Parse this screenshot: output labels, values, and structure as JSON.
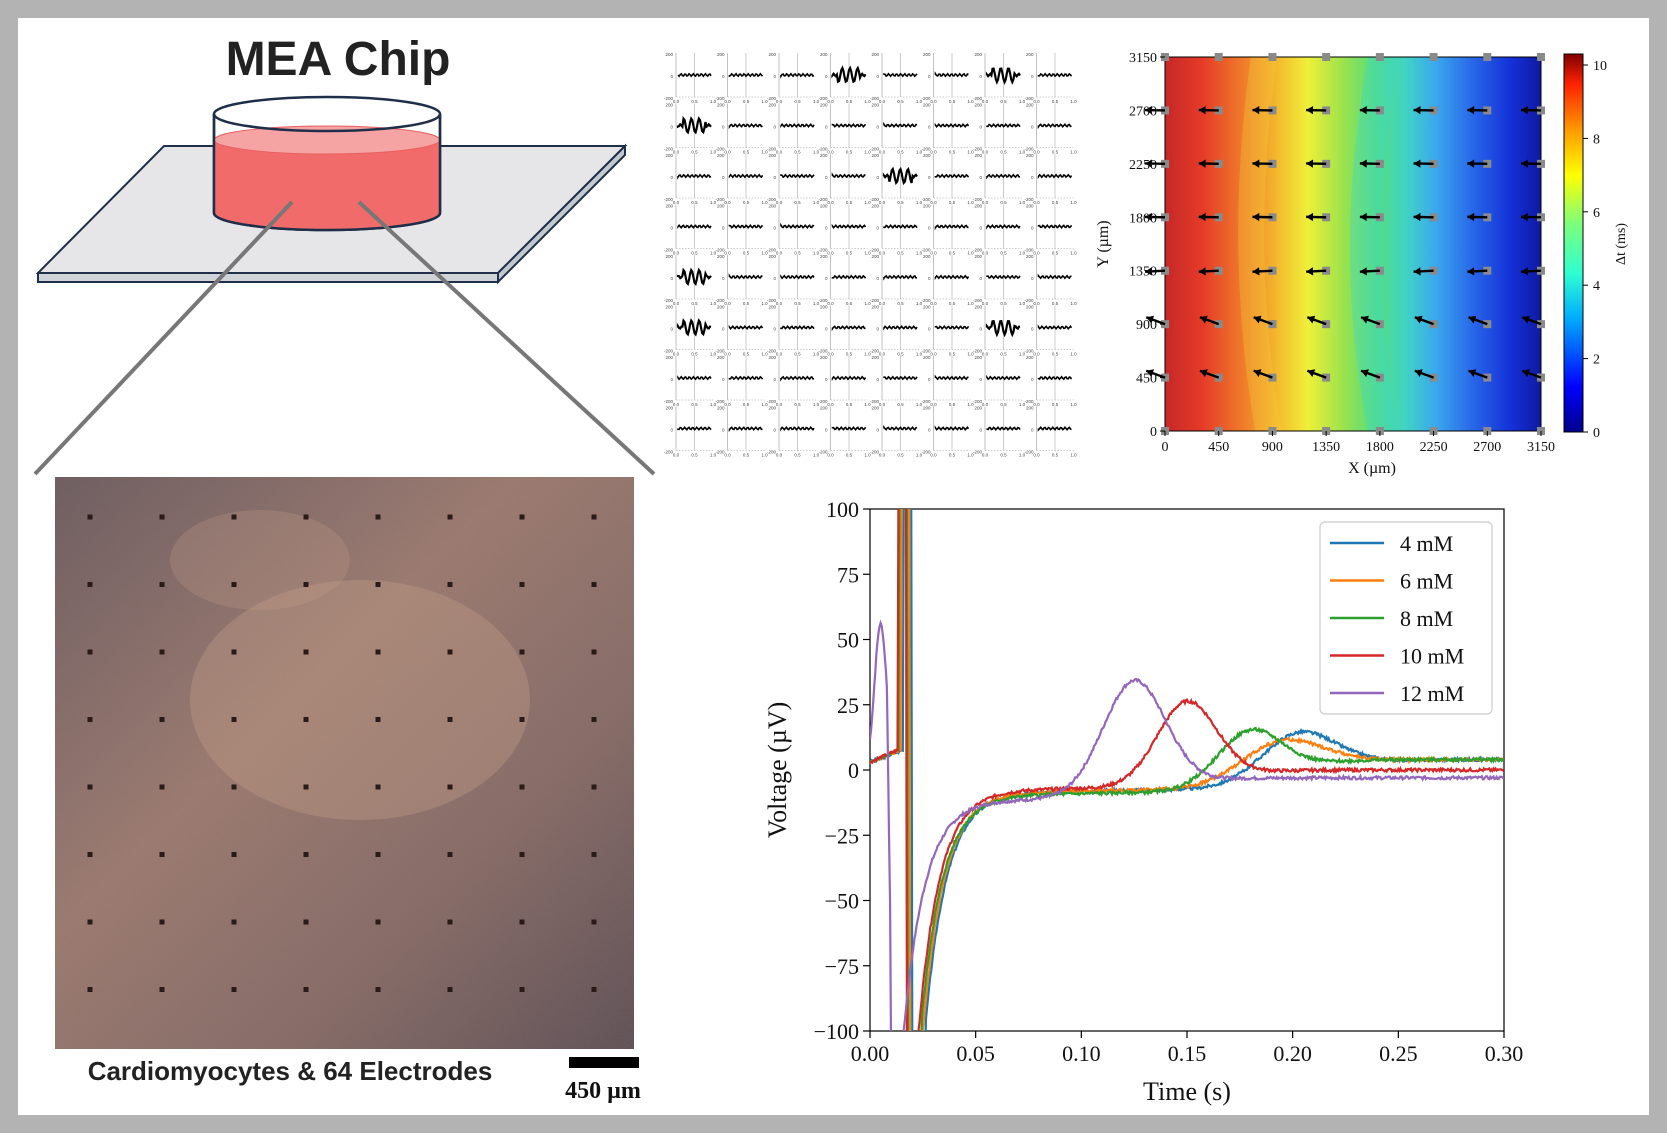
{
  "colors": {
    "frame": "#b3b3b3",
    "liquid": "#f26b6b",
    "plate": "#e6e6e8",
    "outline": "#1f2f4a",
    "micro_base": "#8c6c5f",
    "series_4": "#1f77b4",
    "series_6": "#ff7f0e",
    "series_8": "#2ca02c",
    "series_10": "#d62728",
    "series_12": "#9467bd"
  },
  "chip": {
    "title": "MEA Chip"
  },
  "micrograph": {
    "caption": "Cardiomyocytes & 64 Electrodes",
    "scalebar_label": "450 µm"
  },
  "electrode_grid": {
    "rows": 8,
    "cols": 8,
    "y_ticks": [
      "200",
      "0",
      "-200"
    ],
    "x_ticks": [
      "0.0",
      "0.5",
      "1.0"
    ],
    "active_signal_rc": [
      [
        0,
        3
      ],
      [
        0,
        6
      ],
      [
        1,
        0
      ],
      [
        2,
        4
      ],
      [
        4,
        0
      ],
      [
        5,
        0
      ],
      [
        5,
        6
      ]
    ]
  },
  "chart_data": [
    {
      "type": "heatmap",
      "title": "",
      "xlabel": "X (µm)",
      "ylabel": "Y (µm)",
      "x_ticks": [
        "0",
        "450",
        "900",
        "1350",
        "1800",
        "2250",
        "2700",
        "3150"
      ],
      "y_ticks": [
        "0",
        "450",
        "900",
        "1350",
        "1800",
        "2250",
        "2700",
        "3150"
      ],
      "xlim": [
        0,
        3150
      ],
      "ylim": [
        0,
        3150
      ],
      "colorbar": {
        "label": "Δt (ms)",
        "ticks": [
          "0",
          "2",
          "4",
          "6",
          "8",
          "10"
        ],
        "range": [
          0,
          10.3
        ]
      },
      "field_description": "activation delay increases from right (0 ms) to left (~10 ms), wavefront curved",
      "arrows": "vector arrows at electrode positions pointing toward lower-left / left"
    },
    {
      "type": "line",
      "title": "",
      "xlabel": "Time (s)",
      "ylabel": "Voltage (µV)",
      "xlim": [
        0.0,
        0.3
      ],
      "ylim": [
        -100,
        100
      ],
      "x_ticks": [
        "0.00",
        "0.05",
        "0.10",
        "0.15",
        "0.20",
        "0.25",
        "0.30"
      ],
      "y_ticks": [
        "100",
        "75",
        "50",
        "25",
        "0",
        "−25",
        "−50",
        "−75",
        "−100"
      ],
      "legend_position": "top-right",
      "series": [
        {
          "name": "4 mM",
          "color_key": "series_4",
          "spike_t": 0.02,
          "trough": -100,
          "recovery": -9,
          "peak_t": 0.203,
          "peak_v": 20,
          "peak_w": 0.025,
          "baseline": 4
        },
        {
          "name": "6 mM",
          "color_key": "series_6",
          "spike_t": 0.019,
          "trough": -100,
          "recovery": -9,
          "peak_t": 0.195,
          "peak_v": 17,
          "peak_w": 0.027,
          "baseline": 4
        },
        {
          "name": "8 mM",
          "color_key": "series_8",
          "spike_t": 0.018,
          "trough": -100,
          "recovery": -10,
          "peak_t": 0.18,
          "peak_v": 22,
          "peak_w": 0.022,
          "baseline": 4
        },
        {
          "name": "10 mM",
          "color_key": "series_10",
          "spike_t": 0.017,
          "trough": -100,
          "recovery": -8,
          "peak_t": 0.15,
          "peak_v": 32,
          "peak_w": 0.02,
          "baseline": 0
        },
        {
          "name": "12 mM",
          "color_key": "series_12",
          "spike_t": 0.01,
          "trough": -100,
          "recovery": -12,
          "peak_t": 0.125,
          "peak_v": 44,
          "peak_w": 0.021,
          "baseline": -3,
          "pre_peak_t": 0.005,
          "pre_peak_v": 56
        }
      ]
    }
  ]
}
